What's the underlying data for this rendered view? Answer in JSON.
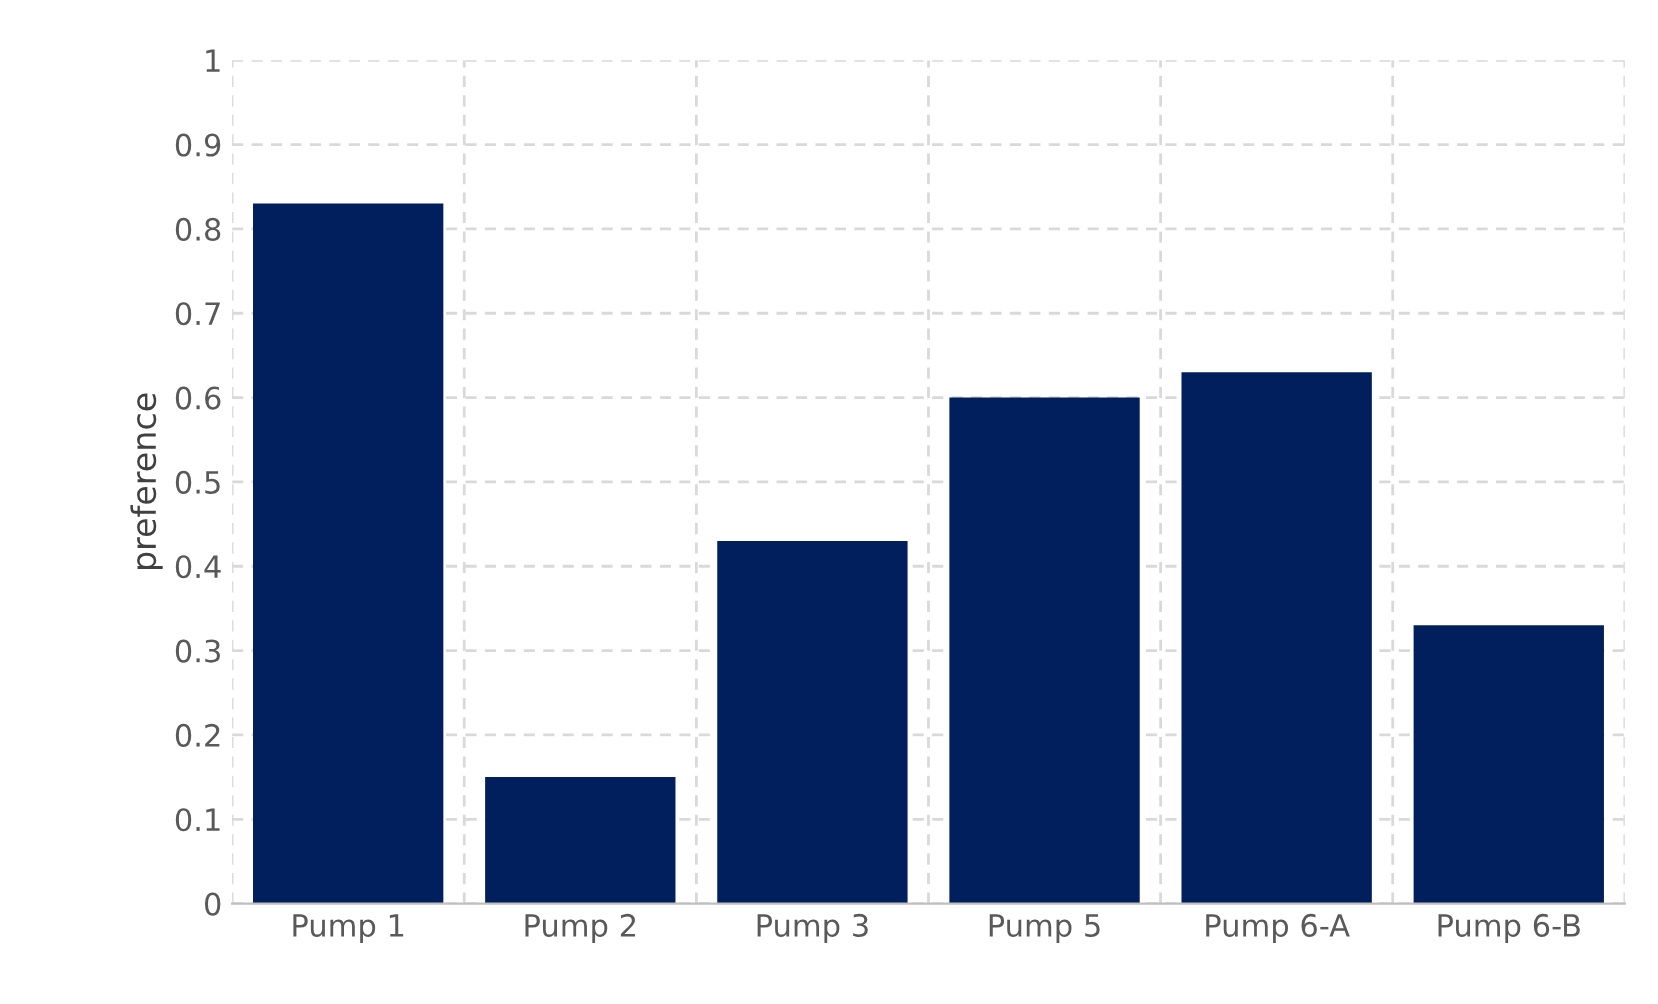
{
  "chart_data": {
    "type": "bar",
    "ylabel": "preference",
    "categories": [
      "Pump 1",
      "Pump 2",
      "Pump 3",
      "Pump 5",
      "Pump 6-A",
      "Pump 6-B"
    ],
    "values": [
      0.83,
      0.15,
      0.43,
      0.6,
      0.63,
      0.33
    ],
    "color": "#001f5c",
    "ylim": [
      0,
      1
    ],
    "yticks": [
      0,
      0.1,
      0.2,
      0.3,
      0.4,
      0.5,
      0.6,
      0.7,
      0.8,
      0.9,
      1
    ],
    "grid": true
  }
}
